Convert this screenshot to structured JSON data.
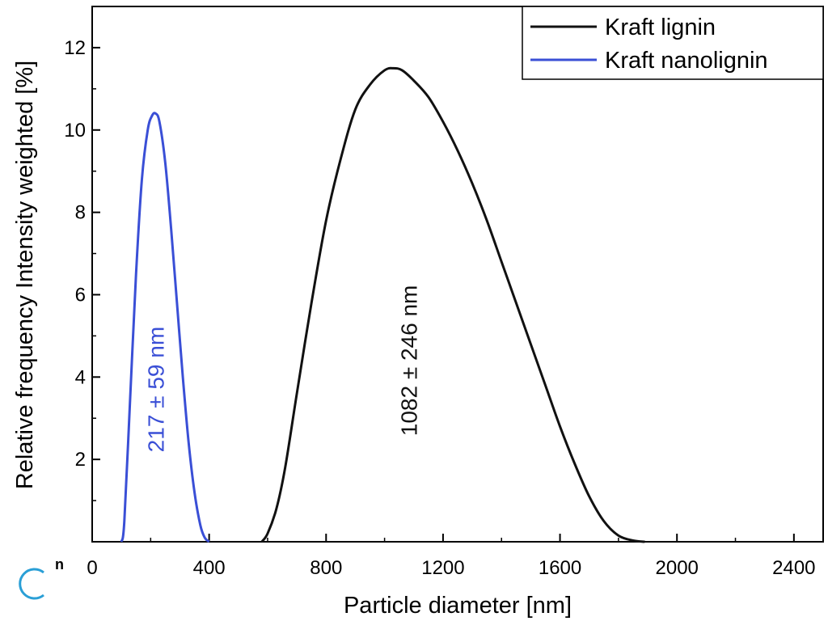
{
  "chart_data": {
    "type": "line",
    "xlabel": "Particle diameter [nm]",
    "ylabel": "Relative frequency Intensity weighted [%]",
    "xlim": [
      0,
      2500
    ],
    "ylim": [
      0,
      13
    ],
    "xticks": [
      0,
      400,
      800,
      1200,
      1600,
      2000,
      2400
    ],
    "yticks": [
      2,
      4,
      6,
      8,
      10,
      12
    ],
    "grid": false,
    "legend_position": "top-right",
    "series": [
      {
        "name": "Kraft lignin",
        "color": "#111111",
        "x": [
          580,
          600,
          630,
          660,
          700,
          750,
          800,
          850,
          900,
          950,
          1000,
          1030,
          1060,
          1100,
          1150,
          1200,
          1250,
          1300,
          1350,
          1400,
          1450,
          1500,
          1550,
          1600,
          1650,
          1700,
          1750,
          1800,
          1850,
          1890
        ],
        "y": [
          0,
          0.2,
          0.8,
          1.8,
          3.6,
          5.8,
          7.8,
          9.3,
          10.5,
          11.1,
          11.45,
          11.5,
          11.45,
          11.2,
          10.8,
          10.2,
          9.5,
          8.7,
          7.8,
          6.8,
          5.8,
          4.8,
          3.8,
          2.8,
          1.9,
          1.1,
          0.5,
          0.15,
          0.03,
          0
        ]
      },
      {
        "name": "Kraft nanolignin",
        "color": "#3a4fd6",
        "x": [
          100,
          110,
          130,
          150,
          170,
          190,
          205,
          217,
          230,
          250,
          270,
          290,
          310,
          330,
          350,
          370,
          385,
          400
        ],
        "y": [
          0,
          0.5,
          3.5,
          6.5,
          8.8,
          10.0,
          10.35,
          10.4,
          10.2,
          9.2,
          7.6,
          5.8,
          4.0,
          2.4,
          1.2,
          0.4,
          0.1,
          0
        ]
      }
    ],
    "annotations": [
      {
        "text": "217 ± 59 nm",
        "color": "#3a4fd6",
        "x": 217,
        "y": 3.7
      },
      {
        "text": "1082 ± 246 nm",
        "color": "#111111",
        "x": 1082,
        "y": 4.4
      }
    ]
  },
  "corner_mark": {
    "letter": "n",
    "color": "#2a9fd6"
  }
}
